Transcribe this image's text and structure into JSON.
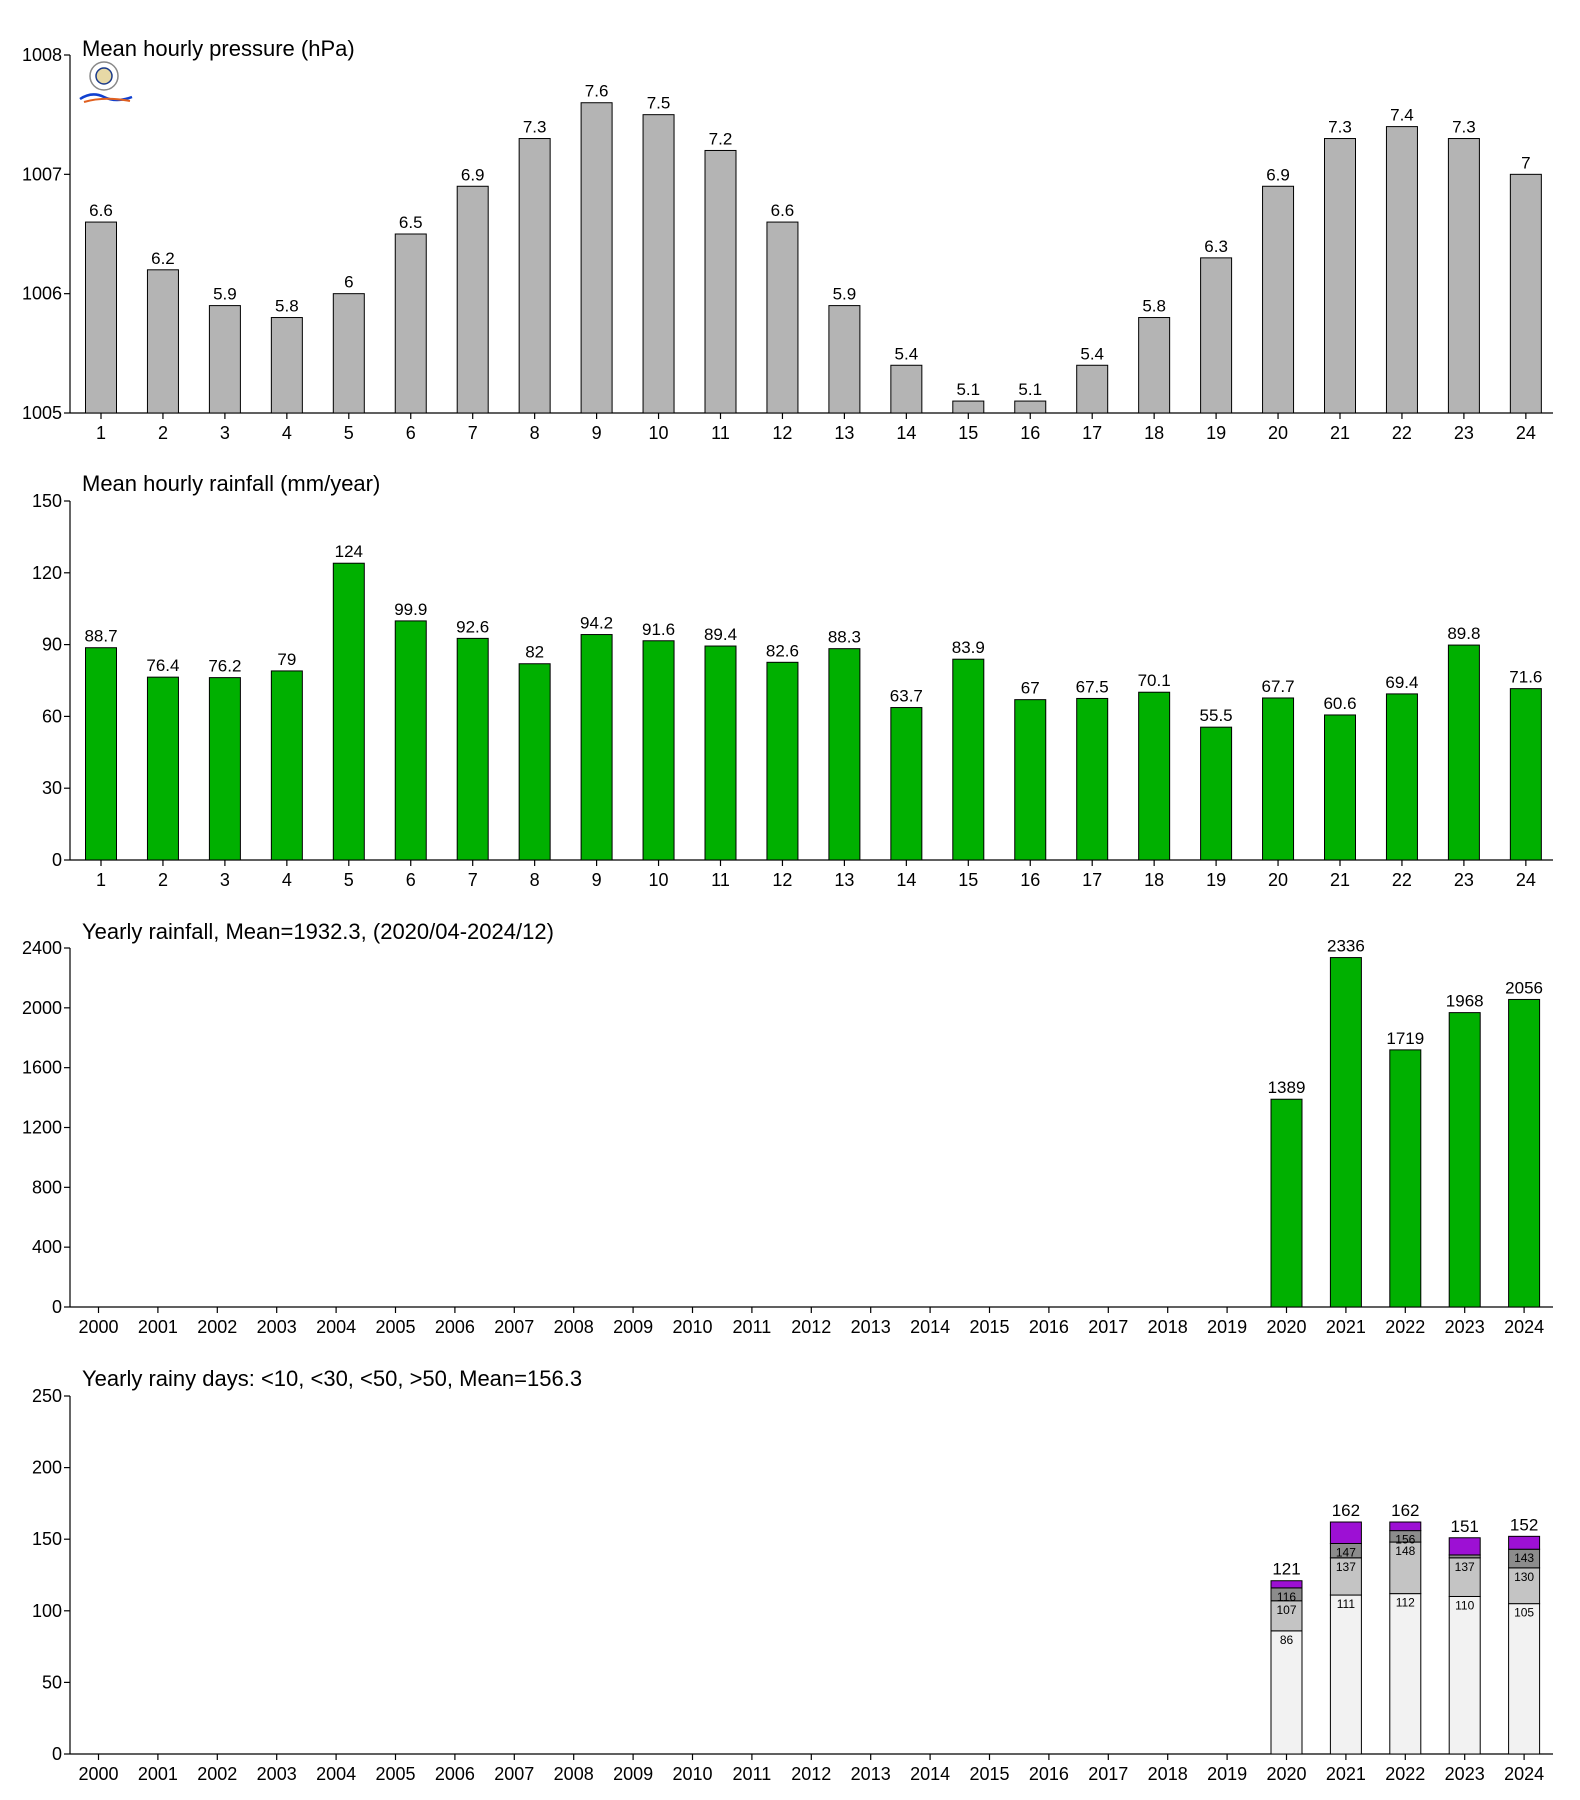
{
  "colors": {
    "gray": "#b4b4b4",
    "green": "#00b000",
    "c1": "#f2f2f2",
    "c2": "#c4c4c4",
    "c3": "#8c8c8c",
    "c4": "#9d10d4"
  },
  "logo": {
    "name": "Weather lab logo"
  },
  "chart_data": [
    {
      "type": "bar",
      "title": "Mean hourly pressure (hPa)",
      "categories": [
        "1",
        "2",
        "3",
        "4",
        "5",
        "6",
        "7",
        "8",
        "9",
        "10",
        "11",
        "12",
        "13",
        "14",
        "15",
        "16",
        "17",
        "18",
        "19",
        "20",
        "21",
        "22",
        "23",
        "24"
      ],
      "values": [
        1006.6,
        1006.2,
        1005.9,
        1005.8,
        1006.0,
        1006.5,
        1006.9,
        1007.3,
        1007.6,
        1007.5,
        1007.2,
        1006.6,
        1005.9,
        1005.4,
        1005.1,
        1005.1,
        1005.4,
        1005.8,
        1006.3,
        1006.9,
        1007.3,
        1007.4,
        1007.3,
        1007.0
      ],
      "value_labels": [
        "6.6",
        "6.2",
        "5.9",
        "5.8",
        "6",
        "6.5",
        "6.9",
        "7.3",
        "7.6",
        "7.5",
        "7.2",
        "6.6",
        "5.9",
        "5.4",
        "5.1",
        "5.1",
        "5.4",
        "5.8",
        "6.3",
        "6.9",
        "7.3",
        "7.4",
        "7.3",
        "7"
      ],
      "ylim": [
        1005,
        1008
      ],
      "yticks": [
        "1005",
        "1006",
        "1007",
        "1008"
      ],
      "color": "#b4b4b4"
    },
    {
      "type": "bar",
      "title": "Mean hourly rainfall (mm/year)",
      "categories": [
        "1",
        "2",
        "3",
        "4",
        "5",
        "6",
        "7",
        "8",
        "9",
        "10",
        "11",
        "12",
        "13",
        "14",
        "15",
        "16",
        "17",
        "18",
        "19",
        "20",
        "21",
        "22",
        "23",
        "24"
      ],
      "values": [
        88.7,
        76.4,
        76.2,
        79,
        124,
        99.9,
        92.6,
        82,
        94.2,
        91.6,
        89.4,
        82.6,
        88.3,
        63.7,
        83.9,
        67,
        67.5,
        70.1,
        55.5,
        67.7,
        60.6,
        69.4,
        89.8,
        71.6
      ],
      "value_labels": [
        "88.7",
        "76.4",
        "76.2",
        "79",
        "124",
        "99.9",
        "92.6",
        "82",
        "94.2",
        "91.6",
        "89.4",
        "82.6",
        "88.3",
        "63.7",
        "83.9",
        "67",
        "67.5",
        "70.1",
        "55.5",
        "67.7",
        "60.6",
        "69.4",
        "89.8",
        "71.6"
      ],
      "ylim": [
        0,
        150
      ],
      "yticks": [
        "0",
        "30",
        "60",
        "90",
        "120",
        "150"
      ],
      "color": "#00b000"
    },
    {
      "type": "bar",
      "title": "Yearly rainfall, Mean=1932.3, (2020/04-2024/12)",
      "categories": [
        "2000",
        "2001",
        "2002",
        "2003",
        "2004",
        "2005",
        "2006",
        "2007",
        "2008",
        "2009",
        "2010",
        "2011",
        "2012",
        "2013",
        "2014",
        "2015",
        "2016",
        "2017",
        "2018",
        "2019",
        "2020",
        "2021",
        "2022",
        "2023",
        "2024"
      ],
      "values": [
        null,
        null,
        null,
        null,
        null,
        null,
        null,
        null,
        null,
        null,
        null,
        null,
        null,
        null,
        null,
        null,
        null,
        null,
        null,
        null,
        1389,
        2336,
        1719,
        1968,
        2056
      ],
      "value_labels": [
        "",
        "",
        "",
        "",
        "",
        "",
        "",
        "",
        "",
        "",
        "",
        "",
        "",
        "",
        "",
        "",
        "",
        "",
        "",
        "",
        "1389",
        "2336",
        "1719",
        "1968",
        "2056"
      ],
      "ylim": [
        0,
        2400
      ],
      "yticks": [
        "0",
        "400",
        "800",
        "1200",
        "1600",
        "2000",
        "2400"
      ],
      "color": "#00b000"
    },
    {
      "type": "bar",
      "stacked": true,
      "title": "Yearly rainy days: <10, <30, <50, >50, Mean=156.3",
      "categories": [
        "2000",
        "2001",
        "2002",
        "2003",
        "2004",
        "2005",
        "2006",
        "2007",
        "2008",
        "2009",
        "2010",
        "2011",
        "2012",
        "2013",
        "2014",
        "2015",
        "2016",
        "2017",
        "2018",
        "2019",
        "2020",
        "2021",
        "2022",
        "2023",
        "2024"
      ],
      "cumulative": [
        {
          "year": "2020",
          "values": [
            86,
            107,
            116,
            121
          ],
          "labels": [
            "86",
            "107",
            "116",
            ""
          ],
          "total": "121"
        },
        {
          "year": "2021",
          "values": [
            111,
            137,
            147,
            162
          ],
          "labels": [
            "111",
            "137",
            "147",
            ""
          ],
          "total": "162"
        },
        {
          "year": "2022",
          "values": [
            112,
            148,
            156,
            162
          ],
          "labels": [
            "112",
            "148",
            "156",
            ""
          ],
          "total": "162"
        },
        {
          "year": "2023",
          "values": [
            110,
            137,
            139,
            151
          ],
          "labels": [
            "110",
            "137",
            "",
            ""
          ],
          "total": "151"
        },
        {
          "year": "2024",
          "values": [
            105,
            130,
            143,
            152
          ],
          "labels": [
            "105",
            "130",
            "143",
            ""
          ],
          "total": "152"
        }
      ],
      "ylim": [
        0,
        250
      ],
      "yticks": [
        "0",
        "50",
        "100",
        "150",
        "200",
        "250"
      ],
      "colors": [
        "#f2f2f2",
        "#c4c4c4",
        "#8c8c8c",
        "#9d10d4"
      ]
    }
  ]
}
